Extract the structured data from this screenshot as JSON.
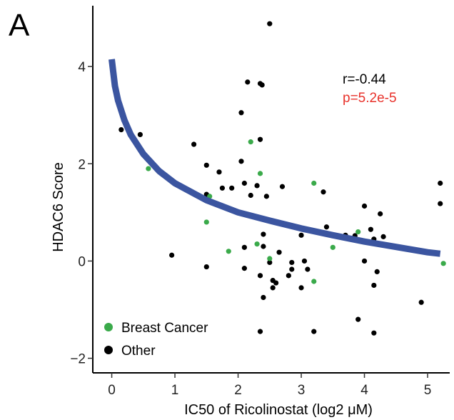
{
  "panel_label": "A",
  "chart_data": {
    "type": "scatter",
    "title": "",
    "xlabel": "IC50 of Ricolinostat (log2 μM)",
    "ylabel": "HDAC6 Score",
    "xlim": [
      -0.3,
      5.35
    ],
    "ylim": [
      -2.3,
      5.25
    ],
    "x_ticks": [
      0,
      1,
      2,
      3,
      4,
      5
    ],
    "y_ticks": [
      -2,
      0,
      2,
      4
    ],
    "x_tick_labels": [
      "0",
      "1",
      "2",
      "3",
      "4",
      "5"
    ],
    "y_tick_labels": [
      "−2",
      "0",
      "2",
      "4"
    ],
    "grid": false,
    "legend_position": "bottom-left",
    "colors": {
      "breast_cancer": "#3aaa4a",
      "other": "#000000",
      "fit": "#3b55a0",
      "p_value": "#e8322b"
    },
    "annotations": {
      "r": "r=-0.44",
      "p": "p=5.2e-5"
    },
    "fit_curve": {
      "x": [
        0.0,
        0.05,
        0.1,
        0.2,
        0.3,
        0.5,
        0.75,
        1.0,
        1.5,
        2.0,
        2.5,
        3.0,
        3.5,
        4.0,
        4.5,
        5.0,
        5.2
      ],
      "y": [
        4.15,
        3.6,
        3.3,
        2.9,
        2.6,
        2.2,
        1.85,
        1.6,
        1.25,
        1.0,
        0.83,
        0.67,
        0.53,
        0.4,
        0.29,
        0.18,
        0.15
      ]
    },
    "series": [
      {
        "name": "Breast Cancer",
        "points": [
          [
            0.58,
            1.9
          ],
          [
            1.55,
            1.33
          ],
          [
            1.5,
            0.8
          ],
          [
            1.85,
            0.2
          ],
          [
            2.2,
            2.45
          ],
          [
            2.35,
            1.8
          ],
          [
            2.3,
            0.35
          ],
          [
            2.5,
            0.05
          ],
          [
            3.2,
            1.6
          ],
          [
            3.5,
            0.28
          ],
          [
            3.2,
            -0.42
          ],
          [
            3.9,
            0.6
          ],
          [
            5.25,
            -0.05
          ]
        ]
      },
      {
        "name": "Other",
        "points": [
          [
            0.15,
            2.7
          ],
          [
            0.45,
            2.6
          ],
          [
            0.95,
            0.12
          ],
          [
            1.3,
            2.4
          ],
          [
            1.5,
            1.97
          ],
          [
            1.5,
            1.37
          ],
          [
            1.5,
            -0.12
          ],
          [
            1.7,
            1.83
          ],
          [
            1.75,
            1.5
          ],
          [
            1.9,
            1.5
          ],
          [
            2.05,
            2.05
          ],
          [
            2.05,
            3.05
          ],
          [
            2.1,
            1.6
          ],
          [
            2.15,
            3.68
          ],
          [
            2.2,
            1.35
          ],
          [
            2.3,
            1.55
          ],
          [
            2.35,
            3.65
          ],
          [
            2.38,
            3.62
          ],
          [
            2.35,
            2.5
          ],
          [
            2.5,
            4.88
          ],
          [
            2.45,
            1.33
          ],
          [
            2.4,
            0.55
          ],
          [
            2.4,
            0.3
          ],
          [
            2.35,
            -0.3
          ],
          [
            2.4,
            -0.75
          ],
          [
            2.35,
            -1.45
          ],
          [
            2.1,
            0.28
          ],
          [
            2.1,
            -0.15
          ],
          [
            2.5,
            -0.03
          ],
          [
            2.55,
            -0.55
          ],
          [
            2.7,
            1.53
          ],
          [
            2.65,
            0.18
          ],
          [
            2.8,
            -0.3
          ],
          [
            2.85,
            -0.17
          ],
          [
            2.85,
            -0.03
          ],
          [
            3.0,
            0.53
          ],
          [
            3.05,
            0.0
          ],
          [
            3.1,
            -0.17
          ],
          [
            3.0,
            -0.55
          ],
          [
            3.2,
            -1.45
          ],
          [
            3.35,
            1.42
          ],
          [
            3.4,
            0.7
          ],
          [
            3.7,
            0.53
          ],
          [
            3.85,
            0.52
          ],
          [
            3.9,
            -1.2
          ],
          [
            4.0,
            1.13
          ],
          [
            4.0,
            0.0
          ],
          [
            4.1,
            0.65
          ],
          [
            4.15,
            0.45
          ],
          [
            4.15,
            -0.5
          ],
          [
            4.15,
            -1.48
          ],
          [
            4.2,
            -0.22
          ],
          [
            4.25,
            0.97
          ],
          [
            4.3,
            0.5
          ],
          [
            4.9,
            -0.85
          ],
          [
            5.2,
            1.6
          ],
          [
            5.2,
            1.18
          ],
          [
            2.55,
            -0.4
          ],
          [
            2.6,
            -0.45
          ]
        ]
      }
    ]
  }
}
